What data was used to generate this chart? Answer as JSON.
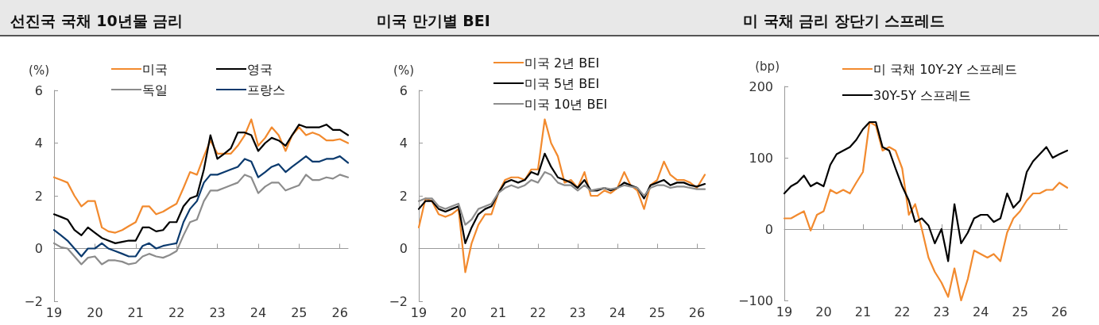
{
  "chart_data": [
    {
      "type": "line",
      "title": "선진국 국채 10년물 금리",
      "ylabel": "(%)",
      "legend": "top",
      "x": [
        19,
        19.17,
        19.33,
        19.5,
        19.67,
        19.83,
        20,
        20.17,
        20.33,
        20.5,
        20.67,
        20.83,
        21,
        21.17,
        21.33,
        21.5,
        21.67,
        21.83,
        22,
        22.17,
        22.33,
        22.5,
        22.67,
        22.83,
        23,
        23.17,
        23.33,
        23.5,
        23.67,
        23.83,
        24,
        24.17,
        24.33,
        24.5,
        24.67,
        24.83,
        25,
        25.17,
        25.33,
        25.5,
        25.67,
        25.83,
        26,
        26.2
      ],
      "xlim": [
        19,
        26.2
      ],
      "xticks": [
        19,
        20,
        21,
        22,
        23,
        24,
        25,
        26
      ],
      "ylim": [
        -2,
        6
      ],
      "yticks": [
        -2,
        0,
        2,
        4,
        6
      ],
      "series": [
        {
          "name": "미국",
          "color": "#f28a2e",
          "values": [
            2.7,
            2.6,
            2.5,
            2.0,
            1.6,
            1.8,
            1.8,
            0.8,
            0.65,
            0.6,
            0.7,
            0.85,
            1.0,
            1.6,
            1.6,
            1.3,
            1.4,
            1.55,
            1.7,
            2.3,
            2.9,
            2.8,
            3.5,
            4.1,
            3.6,
            3.6,
            3.6,
            3.9,
            4.3,
            4.9,
            3.9,
            4.2,
            4.6,
            4.3,
            3.7,
            4.3,
            4.6,
            4.3,
            4.4,
            4.3,
            4.1,
            4.1,
            4.15,
            4.0
          ]
        },
        {
          "name": "영국",
          "color": "#000000",
          "values": [
            1.3,
            1.2,
            1.1,
            0.7,
            0.5,
            0.8,
            0.6,
            0.4,
            0.3,
            0.2,
            0.25,
            0.3,
            0.3,
            0.8,
            0.8,
            0.65,
            0.7,
            1.0,
            1.0,
            1.6,
            1.9,
            2.0,
            3.0,
            4.3,
            3.4,
            3.6,
            3.8,
            4.4,
            4.4,
            4.3,
            3.7,
            4.0,
            4.2,
            4.1,
            3.9,
            4.3,
            4.7,
            4.6,
            4.6,
            4.6,
            4.7,
            4.5,
            4.5,
            4.3
          ]
        },
        {
          "name": "독일",
          "color": "#8c8c8c",
          "values": [
            0.2,
            0.05,
            0.0,
            -0.3,
            -0.6,
            -0.35,
            -0.3,
            -0.6,
            -0.45,
            -0.45,
            -0.5,
            -0.6,
            -0.55,
            -0.3,
            -0.2,
            -0.3,
            -0.35,
            -0.25,
            -0.1,
            0.5,
            1.0,
            1.1,
            1.8,
            2.2,
            2.2,
            2.3,
            2.4,
            2.5,
            2.8,
            2.7,
            2.1,
            2.35,
            2.5,
            2.5,
            2.2,
            2.3,
            2.4,
            2.8,
            2.6,
            2.6,
            2.7,
            2.65,
            2.8,
            2.7
          ]
        },
        {
          "name": "프랑스",
          "color": "#0b3a6e",
          "values": [
            0.7,
            0.5,
            0.3,
            0.0,
            -0.3,
            0.0,
            0.0,
            0.2,
            0.0,
            -0.1,
            -0.2,
            -0.3,
            -0.3,
            0.1,
            0.2,
            0.0,
            0.1,
            0.15,
            0.2,
            1.0,
            1.5,
            1.8,
            2.5,
            2.8,
            2.8,
            2.9,
            3.0,
            3.1,
            3.4,
            3.3,
            2.7,
            2.9,
            3.1,
            3.2,
            2.9,
            3.1,
            3.3,
            3.5,
            3.3,
            3.3,
            3.4,
            3.4,
            3.5,
            3.25
          ]
        }
      ]
    },
    {
      "type": "line",
      "title": "미국 만기별 BEI",
      "ylabel": "(%)",
      "legend": "top",
      "x": [
        19,
        19.17,
        19.33,
        19.5,
        19.67,
        19.83,
        20,
        20.17,
        20.33,
        20.5,
        20.67,
        20.83,
        21,
        21.17,
        21.33,
        21.5,
        21.67,
        21.83,
        22,
        22.17,
        22.33,
        22.5,
        22.67,
        22.83,
        23,
        23.17,
        23.33,
        23.5,
        23.67,
        23.83,
        24,
        24.17,
        24.33,
        24.5,
        24.67,
        24.83,
        25,
        25.17,
        25.33,
        25.5,
        25.67,
        25.83,
        26,
        26.2
      ],
      "xlim": [
        19,
        26.2
      ],
      "xticks": [
        19,
        20,
        21,
        22,
        23,
        24,
        25,
        26
      ],
      "ylim": [
        -2,
        6
      ],
      "yticks": [
        -2,
        0,
        2,
        4,
        6
      ],
      "series": [
        {
          "name": "미국 2년 BEI",
          "color": "#f28a2e",
          "values": [
            0.8,
            1.9,
            1.8,
            1.3,
            1.2,
            1.3,
            1.5,
            -0.9,
            0.2,
            0.9,
            1.3,
            1.3,
            2.1,
            2.6,
            2.7,
            2.7,
            2.6,
            3.0,
            3.0,
            4.9,
            4.0,
            3.5,
            2.5,
            2.6,
            2.3,
            2.9,
            2.0,
            2.0,
            2.2,
            2.1,
            2.3,
            2.9,
            2.4,
            2.2,
            1.5,
            2.4,
            2.6,
            3.3,
            2.8,
            2.6,
            2.6,
            2.5,
            2.3,
            2.8
          ]
        },
        {
          "name": "미국 5년 BEI",
          "color": "#000000",
          "values": [
            1.5,
            1.8,
            1.8,
            1.5,
            1.4,
            1.5,
            1.6,
            0.2,
            0.8,
            1.3,
            1.5,
            1.6,
            2.1,
            2.5,
            2.6,
            2.5,
            2.6,
            2.9,
            2.8,
            3.6,
            3.1,
            2.7,
            2.6,
            2.5,
            2.3,
            2.6,
            2.2,
            2.2,
            2.3,
            2.2,
            2.3,
            2.5,
            2.4,
            2.3,
            1.9,
            2.4,
            2.5,
            2.6,
            2.4,
            2.5,
            2.5,
            2.4,
            2.35,
            2.45
          ]
        },
        {
          "name": "미국 10년 BEI",
          "color": "#8c8c8c",
          "values": [
            1.8,
            1.9,
            1.9,
            1.6,
            1.5,
            1.6,
            1.7,
            0.9,
            1.1,
            1.5,
            1.6,
            1.7,
            2.1,
            2.3,
            2.4,
            2.3,
            2.4,
            2.6,
            2.5,
            2.9,
            2.8,
            2.5,
            2.4,
            2.4,
            2.2,
            2.4,
            2.2,
            2.25,
            2.3,
            2.25,
            2.3,
            2.4,
            2.35,
            2.3,
            2.0,
            2.3,
            2.4,
            2.4,
            2.3,
            2.35,
            2.35,
            2.3,
            2.25,
            2.25
          ]
        }
      ]
    },
    {
      "type": "line",
      "title": "미 국채 금리 장단기 스프레드",
      "ylabel": "(bp)",
      "legend": "top",
      "x": [
        19,
        19.17,
        19.33,
        19.5,
        19.67,
        19.83,
        20,
        20.17,
        20.33,
        20.5,
        20.67,
        20.83,
        21,
        21.17,
        21.33,
        21.5,
        21.67,
        21.83,
        22,
        22.17,
        22.33,
        22.5,
        22.67,
        22.83,
        23,
        23.17,
        23.33,
        23.5,
        23.67,
        23.83,
        24,
        24.17,
        24.33,
        24.5,
        24.67,
        24.83,
        25,
        25.17,
        25.33,
        25.5,
        25.67,
        25.83,
        26,
        26.2
      ],
      "xlim": [
        19,
        26.2
      ],
      "xticks": [
        19,
        20,
        21,
        22,
        23,
        24,
        25,
        26
      ],
      "ylim": [
        -100,
        200
      ],
      "yticks": [
        -100,
        0,
        100,
        200
      ],
      "series": [
        {
          "name": "미 국채 10Y-2Y 스프레드",
          "color": "#f28a2e",
          "values": [
            15,
            15,
            20,
            25,
            -2,
            20,
            25,
            55,
            50,
            55,
            50,
            65,
            80,
            150,
            145,
            110,
            115,
            110,
            85,
            20,
            35,
            0,
            -40,
            -60,
            -75,
            -95,
            -55,
            -100,
            -70,
            -30,
            -35,
            -40,
            -35,
            -45,
            -5,
            15,
            25,
            40,
            50,
            50,
            55,
            55,
            65,
            58
          ]
        },
        {
          "name": "30Y-5Y 스프레드",
          "color": "#000000",
          "values": [
            50,
            60,
            65,
            75,
            60,
            65,
            60,
            90,
            105,
            110,
            115,
            125,
            140,
            150,
            150,
            115,
            110,
            85,
            60,
            40,
            10,
            15,
            5,
            -20,
            0,
            -45,
            35,
            -20,
            -5,
            15,
            20,
            20,
            10,
            15,
            50,
            30,
            40,
            80,
            95,
            105,
            115,
            100,
            105,
            110
          ]
        }
      ]
    }
  ]
}
